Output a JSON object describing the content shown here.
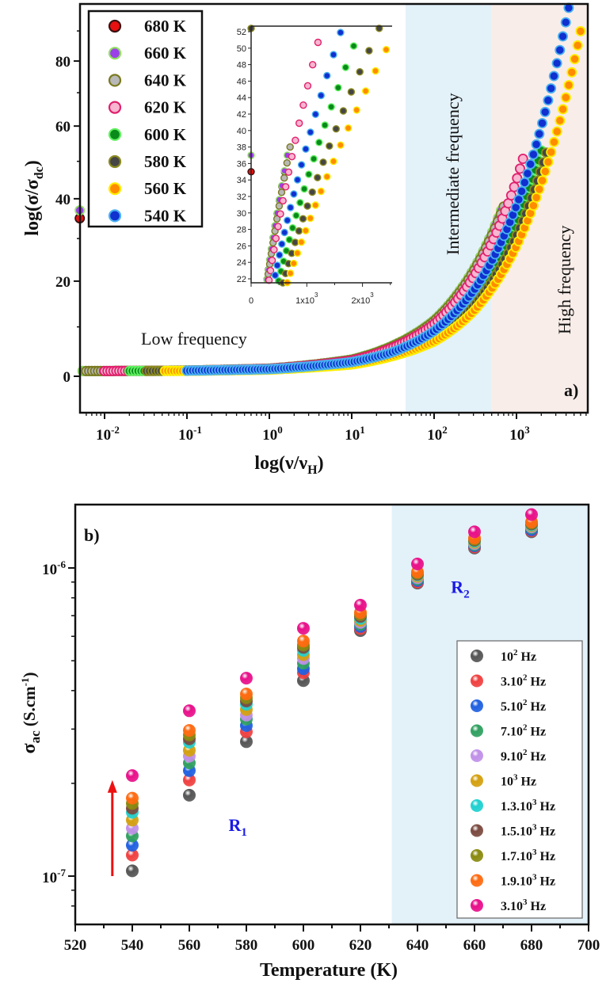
{
  "chart_data": [
    {
      "type": "scatter",
      "panel_label": "a)",
      "xlabel": {
        "main": "log(ν/ν",
        "sub": "H",
        "close": ")"
      },
      "ylabel": {
        "main": "log(σ/σ",
        "sub": "dc",
        "close": ")"
      },
      "xscale": "log",
      "xlim": [
        0.005,
        7400
      ],
      "ylim": [
        -7,
        99
      ],
      "x_ticks": [
        {
          "v": 0.01,
          "base": "10",
          "exp": "-2"
        },
        {
          "v": 0.1,
          "base": "10",
          "exp": "-1"
        },
        {
          "v": 1,
          "base": "10",
          "exp": "0"
        },
        {
          "v": 10,
          "base": "10",
          "exp": "1"
        },
        {
          "v": 100,
          "base": "10",
          "exp": "2"
        },
        {
          "v": 1000,
          "base": "10",
          "exp": "3"
        }
      ],
      "y_ticks": [
        0,
        20,
        40,
        60,
        80
      ],
      "regions": [
        {
          "label": "Low frequency",
          "range": [
            0.005,
            45
          ],
          "color": "#ffffff"
        },
        {
          "label": "Intermediate frequency",
          "range": [
            45,
            500
          ],
          "color": "#e3f1f9"
        },
        {
          "label": "High frequency",
          "range": [
            500,
            7400
          ],
          "color": "#f8ede9"
        }
      ],
      "legend_position": "top-left",
      "series": [
        {
          "name": "680 K",
          "fill": "#e81010",
          "stroke": "#3a1010",
          "points": [
            [
              0.005,
              1.02
            ],
            [
              0.01,
              1.02
            ],
            [
              0.1,
              1.11
            ],
            [
              1,
              1.5
            ],
            [
              10,
              3.3
            ],
            [
              100,
              11.4
            ],
            [
              300,
              22.6
            ],
            [
              600,
              35
            ]
          ]
        },
        {
          "name": "660 K",
          "fill": "#9b40e8",
          "stroke": "#8fe060",
          "points": [
            [
              0.005,
              1.02
            ],
            [
              0.01,
              1.02
            ],
            [
              0.1,
              1.11
            ],
            [
              1,
              1.5
            ],
            [
              10,
              3.3
            ],
            [
              100,
              11.4
            ],
            [
              300,
              22.6
            ],
            [
              650,
              37
            ]
          ]
        },
        {
          "name": "640 K",
          "fill": "#b8b8b8",
          "stroke": "#7a7a20",
          "points": [
            [
              0.006,
              1.02
            ],
            [
              0.01,
              1.02
            ],
            [
              0.1,
              1.11
            ],
            [
              1,
              1.49
            ],
            [
              10,
              3.24
            ],
            [
              100,
              11.2
            ],
            [
              300,
              22.2
            ],
            [
              700,
              38
            ]
          ]
        },
        {
          "name": "620 K",
          "fill": "#f8b6d0",
          "stroke": "#e0206e",
          "points": [
            [
              0.01,
              1.02
            ],
            [
              0.1,
              1.1
            ],
            [
              1,
              1.46
            ],
            [
              10,
              3.1
            ],
            [
              100,
              10.6
            ],
            [
              300,
              20.9
            ],
            [
              1000,
              44.9
            ],
            [
              1200,
              50.7
            ]
          ]
        },
        {
          "name": "600 K",
          "fill": "#0a8a1a",
          "stroke": "#60f060",
          "points": [
            [
              0.02,
              1.03
            ],
            [
              0.1,
              1.08
            ],
            [
              1,
              1.35
            ],
            [
              10,
              2.58
            ],
            [
              100,
              8.21
            ],
            [
              300,
              15.9
            ],
            [
              1000,
              33.9
            ],
            [
              2000,
              53
            ]
          ]
        },
        {
          "name": "580 K",
          "fill": "#454545",
          "stroke": "#8a8a20",
          "points": [
            [
              0.03,
              1.03
            ],
            [
              0.1,
              1.07
            ],
            [
              1,
              1.31
            ],
            [
              10,
              2.42
            ],
            [
              100,
              7.48
            ],
            [
              300,
              14.4
            ],
            [
              1000,
              30.6
            ],
            [
              2300,
              52.4
            ]
          ]
        },
        {
          "name": "560 K",
          "fill": "#ff8c00",
          "stroke": "#ffee00",
          "points": [
            [
              0.05,
              1.04
            ],
            [
              0.1,
              1.06
            ],
            [
              1,
              1.29
            ],
            [
              10,
              2.3
            ],
            [
              100,
              6.96
            ],
            [
              300,
              13.3
            ],
            [
              1000,
              28.2
            ],
            [
              2000,
              44
            ],
            [
              4000,
              68.8
            ],
            [
              6000,
              89.9
            ]
          ]
        },
        {
          "name": "540 K",
          "fill": "#1030d0",
          "stroke": "#4ab0f0",
          "points": [
            [
              0.1,
              1.09
            ],
            [
              1,
              1.39
            ],
            [
              10,
              2.78
            ],
            [
              30,
              4.68
            ],
            [
              100,
              9.15
            ],
            [
              300,
              17.8
            ],
            [
              1000,
              38.2
            ],
            [
              2000,
              59.8
            ],
            [
              4300,
              98
            ]
          ]
        }
      ],
      "inset": {
        "xlim": [
          0,
          2540
        ],
        "ylim": [
          21.5,
          52.7
        ],
        "x_ticks": [
          {
            "v": 0,
            "base": "0",
            "exp": ""
          },
          {
            "v": 1000,
            "base": "1x10",
            "exp": "3"
          },
          {
            "v": 2000,
            "base": "2x10",
            "exp": "3"
          }
        ],
        "y_ticks": [
          22,
          24,
          26,
          28,
          30,
          32,
          34,
          36,
          38,
          40,
          42,
          44,
          46,
          48,
          50,
          52
        ]
      }
    },
    {
      "type": "scatter",
      "panel_label": "b)",
      "xlabel": "Temperature (K)",
      "ylabel": {
        "main": "σ",
        "sub": "ac",
        "rest": " (S.cm",
        "sup": "-1",
        "close": ")"
      },
      "yscale": "log",
      "xlim": [
        520,
        700
      ],
      "ylim": [
        6.97e-08,
        1.61e-06
      ],
      "x_ticks": [
        520,
        540,
        560,
        580,
        600,
        620,
        640,
        660,
        680,
        700
      ],
      "y_ticks": [
        {
          "v": 1e-07,
          "base": "10",
          "exp": "-7"
        },
        {
          "v": 1e-06,
          "base": "10",
          "exp": "-6"
        }
      ],
      "region_shade": {
        "range": [
          631,
          700
        ],
        "color": "#e3f1f9"
      },
      "region_labels": [
        {
          "main": "R",
          "sub": "1",
          "x": 577,
          "y": 1.4e-07
        },
        {
          "main": "R",
          "sub": "2",
          "x": 655,
          "y": 8.3e-07
        }
      ],
      "arrow": {
        "x": 533,
        "from": 1e-07,
        "to": 2.05e-07,
        "color": "#ee1010"
      },
      "legend_position": "bottom-right",
      "temperatures": [
        540,
        560,
        580,
        600,
        620,
        640,
        660,
        680
      ],
      "series": [
        {
          "name": {
            "pre": "10",
            "sup": "2",
            "post": " Hz"
          },
          "color": "#555555",
          "values": [
            1.04e-07,
            1.83e-07,
            2.73e-07,
            4.31e-07,
            6.26e-07,
            8.93e-07,
            1.16e-06,
            1.31e-06
          ]
        },
        {
          "name": {
            "pre": "3.10",
            "sup": "2",
            "post": " Hz"
          },
          "color": "#f04040",
          "values": [
            1.17e-07,
            2.05e-07,
            2.94e-07,
            4.57e-07,
            6.36e-07,
            9e-07,
            1.17e-06,
            1.32e-06
          ]
        },
        {
          "name": {
            "pre": "5.10",
            "sup": "2",
            "post": " Hz"
          },
          "color": "#2060e0",
          "values": [
            1.26e-07,
            2.2e-07,
            3.08e-07,
            4.71e-07,
            6.46e-07,
            9.1e-07,
            1.18e-06,
            1.33e-06
          ]
        },
        {
          "name": {
            "pre": "7.10",
            "sup": "2",
            "post": " Hz"
          },
          "color": "#30a060",
          "values": [
            1.35e-07,
            2.33e-07,
            3.23e-07,
            4.91e-07,
            6.56e-07,
            9.2e-07,
            1.19e-06,
            1.35e-06
          ]
        },
        {
          "name": {
            "pre": "9.10",
            "sup": "2",
            "post": " Hz"
          },
          "color": "#c090e8",
          "values": [
            1.43e-07,
            2.45e-07,
            3.33e-07,
            5.08e-07,
            6.66e-07,
            9.3e-07,
            1.2e-06,
            1.36e-06
          ]
        },
        {
          "name": {
            "pre": "10",
            "sup": "3",
            "post": " Hz"
          },
          "color": "#d4a010",
          "values": [
            1.52e-07,
            2.56e-07,
            3.47e-07,
            5.23e-07,
            6.76e-07,
            9.4e-07,
            1.21e-06,
            1.37e-06
          ]
        },
        {
          "name": {
            "pre": "1.3.10",
            "sup": "3",
            "post": " Hz"
          },
          "color": "#20d0d0",
          "values": [
            1.61e-07,
            2.72e-07,
            3.61e-07,
            5.4e-07,
            6.86e-07,
            9.5e-07,
            1.22e-06,
            1.38e-06
          ]
        },
        {
          "name": {
            "pre": "1.5.10",
            "sup": "3",
            "post": " Hz"
          },
          "color": "#7a4a40",
          "values": [
            1.66e-07,
            2.79e-07,
            3.7e-07,
            5.52e-07,
            6.96e-07,
            9.55e-07,
            1.23e-06,
            1.39e-06
          ]
        },
        {
          "name": {
            "pre": "1.7.10",
            "sup": "3",
            "post": " Hz"
          },
          "color": "#8a8a10",
          "values": [
            1.72e-07,
            2.87e-07,
            3.79e-07,
            5.62e-07,
            7.06e-07,
            9.62e-07,
            1.24e-06,
            1.4e-06
          ]
        },
        {
          "name": {
            "pre": "1.9.10",
            "sup": "3",
            "post": " Hz"
          },
          "color": "#ff6a10",
          "values": [
            1.79e-07,
            2.97e-07,
            3.9e-07,
            5.79e-07,
            7.16e-07,
            9.7e-07,
            1.25e-06,
            1.41e-06
          ]
        },
        {
          "name": {
            "pre": "3.10",
            "sup": "3",
            "post": " Hz"
          },
          "color": "#e8108a",
          "values": [
            2.12e-07,
            3.44e-07,
            4.39e-07,
            6.37e-07,
            7.57e-07,
            1.03e-06,
            1.31e-06,
            1.49e-06
          ]
        }
      ]
    }
  ]
}
